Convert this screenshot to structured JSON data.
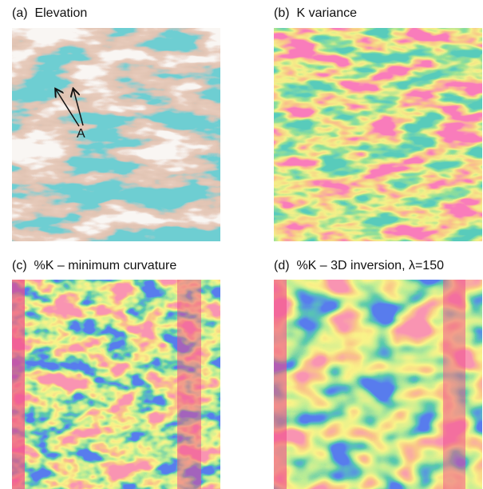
{
  "panels": [
    {
      "title": "(a)  Elevation"
    },
    {
      "title": "(b)  K variance"
    },
    {
      "title": "(c)  %K – minimum curvature"
    },
    {
      "title": "(d)  %K – 3D inversion, λ=150"
    }
  ],
  "annotation": "A"
}
